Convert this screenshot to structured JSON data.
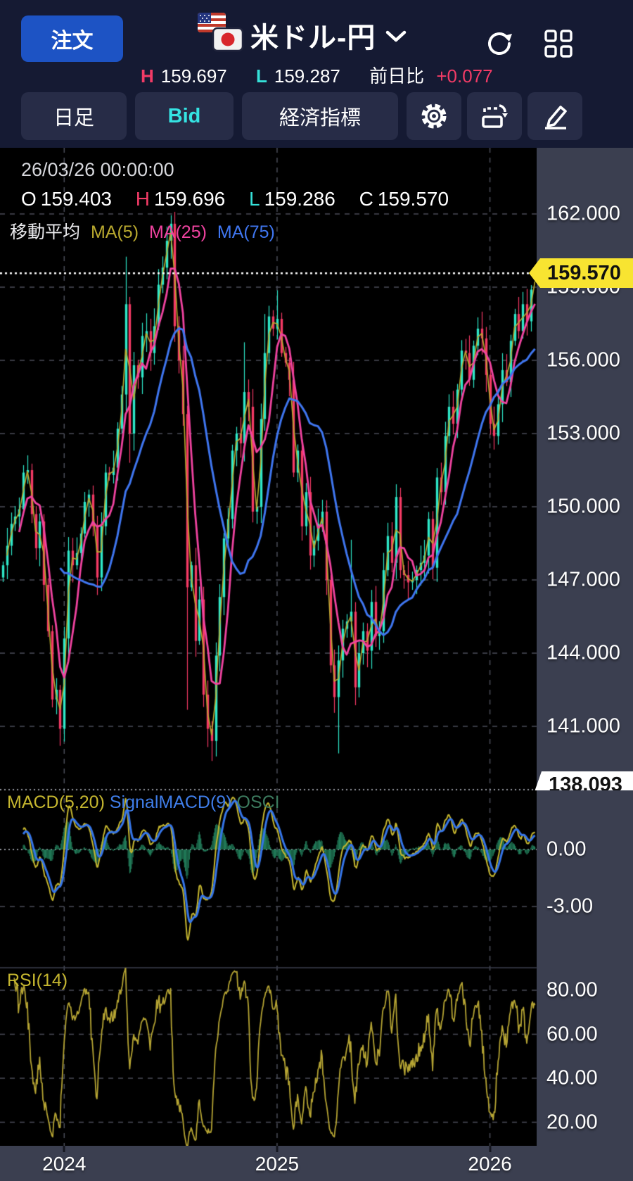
{
  "header": {
    "order_button": "注文",
    "instrument": "米ドル-円",
    "high_label": "H",
    "high": "159.697",
    "low_label": "L",
    "low": "159.287",
    "change_label": "前日比",
    "change": "+0.077"
  },
  "toolbar": {
    "timeframe": "日足",
    "price_side": "Bid",
    "economic": "経済指標"
  },
  "overlay": {
    "datetime": "26/03/26 00:00:00",
    "o_label": "O",
    "o": "159.403",
    "h_label": "H",
    "h": "159.696",
    "l_label": "L",
    "l": "159.286",
    "c_label": "C",
    "c": "159.570",
    "ma_title": "移動平均",
    "ma5_label": "MA(5)",
    "ma25_label": "MA(25)",
    "ma75_label": "MA(75)"
  },
  "indicators": {
    "macd_label": "MACD(5,20)",
    "signal_label": "SignalMACD(9)",
    "osci_label": "OSCI",
    "rsi_label": "RSI(14)"
  },
  "axis": {
    "price_ticks": [
      "162.000",
      "159.000",
      "156.000",
      "153.000",
      "150.000",
      "147.000",
      "144.000",
      "141.000"
    ],
    "macd_ticks": [
      "0.00",
      "-3.00"
    ],
    "rsi_ticks": [
      "80.00",
      "60.00",
      "40.00",
      "20.00"
    ],
    "price_tag": "159.570",
    "low_tag": "138.093"
  },
  "chart_data": {
    "type": "candlestick+indicators",
    "instrument": "USD/JPY (米ドル-円)",
    "timeframe": "daily (日足), data stored at weekly resolution",
    "current_price": 159.57,
    "main_range": [
      138.093,
      164.5
    ],
    "y_axis": {
      "main_ticks": [
        162,
        159,
        156,
        153,
        150,
        147,
        144,
        141
      ],
      "macd_ticks": [
        0,
        -3
      ],
      "rsi_ticks": [
        80,
        60,
        40,
        20
      ]
    },
    "x_axis": {
      "years": [
        {
          "label": "2024",
          "week": 15
        },
        {
          "label": "2025",
          "week": 67
        },
        {
          "label": "2026",
          "week": 119
        }
      ]
    },
    "indicator_params": {
      "ma_periods": [
        5,
        25,
        75
      ],
      "macd_fast": 5,
      "macd_slow": 20,
      "macd_signal": 9,
      "rsi_period": 14
    },
    "last_candle": {
      "date": "26/03/26 00:00:00",
      "o": 159.403,
      "h": 159.696,
      "l": 159.286,
      "c": 159.57
    },
    "candles": {
      "closes": [
        147.6,
        148.4,
        149.3,
        149.6,
        149.9,
        151.4,
        151.5,
        149.7,
        148.3,
        149.4,
        146.8,
        144.9,
        142.1,
        142.5,
        140.9,
        144.6,
        148.2,
        147.6,
        148.1,
        148.9,
        150.2,
        150.5,
        149.2,
        147.1,
        149.2,
        151.4,
        151.3,
        151.6,
        153.2,
        154.6,
        158.3,
        153.0,
        155.8,
        155.3,
        157.0,
        157.2,
        156.3,
        157.4,
        159.1,
        159.8,
        160.9,
        161.6,
        157.4,
        156.0,
        153.8,
        146.7,
        147.6,
        144.5,
        146.2,
        142.3,
        140.9,
        140.4,
        143.9,
        146.3,
        148.7,
        149.5,
        152.3,
        153.0,
        152.6,
        154.7,
        154.1,
        149.8,
        150.0,
        153.6,
        156.3,
        157.8,
        157.3,
        157.7,
        156.3,
        155.9,
        155.2,
        151.4,
        152.3,
        149.2,
        150.6,
        148.0,
        148.6,
        149.3,
        149.8,
        147.0,
        143.5,
        142.2,
        143.7,
        145.0,
        145.3,
        145.7,
        142.6,
        144.0,
        144.9,
        144.1,
        146.1,
        144.7,
        144.9,
        147.4,
        148.8,
        147.7,
        150.4,
        147.4,
        147.2,
        146.9,
        147.0,
        147.4,
        147.7,
        148.0,
        149.5,
        147.5,
        151.2,
        150.6,
        152.9,
        154.1,
        153.4,
        154.8,
        156.4,
        156.3,
        155.2,
        156.6,
        157.3,
        156.9,
        155.4,
        153.4,
        152.9,
        154.2,
        155.6,
        155.1,
        156.8,
        157.9,
        157.2,
        158.3,
        157.6,
        158.9,
        159.57
      ],
      "special": {
        "30": {
          "h": 160.25
        },
        "31": {
          "h": 158.6,
          "l": 151.8
        },
        "41": {
          "h": 161.95
        },
        "45": {
          "l": 141.68
        },
        "51": {
          "l": 139.58
        },
        "59": {
          "h": 156.74
        },
        "64": {
          "h": 157.9
        },
        "67": {
          "h": 158.87
        },
        "82": {
          "l": 139.89
        },
        "85": {
          "h": 148.65
        },
        "96": {
          "h": 150.92
        },
        "130": {
          "o": 159.403,
          "h": 159.696,
          "l": 159.286,
          "c": 159.57
        }
      }
    },
    "colors": {
      "up": "#2ee8c8",
      "down": "#f43a64",
      "ma5": "#b9a92f",
      "ma25": "#f043a0",
      "ma75": "#3f76f0",
      "macd": "#c5b62f",
      "signal": "#3575e8",
      "osci": "#217a58",
      "rsi": "#b5a433",
      "price_tag_bg": "#f8e431",
      "accent_blue": "#1d53c4"
    }
  }
}
